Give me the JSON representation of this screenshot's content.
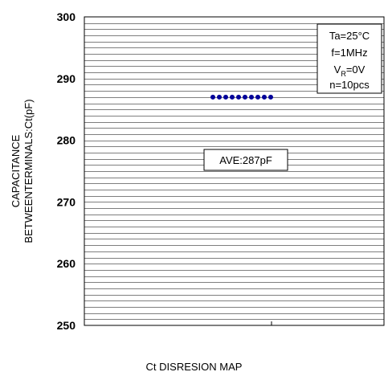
{
  "chart_data": {
    "type": "scatter",
    "title": "",
    "xlabel": "Ct DISRESION MAP",
    "ylabel_lines": [
      "CAPACITANCE",
      "BETWEENTERMINALS:Ct(pF)"
    ],
    "ylim": [
      250,
      300
    ],
    "yticks": [
      250,
      260,
      270,
      280,
      290,
      300
    ],
    "grid": true,
    "series": [
      {
        "values": [
          287,
          287,
          287,
          287,
          287,
          287,
          287,
          287,
          287,
          287
        ],
        "color": "#000099"
      }
    ],
    "annotation": "AVE:287pF",
    "conditions": {
      "ta": "Ta=25°C",
      "f": "f=1MHz",
      "vr_main": "V",
      "vr_sub": "R",
      "vr_value": "=0V",
      "n": "n=10pcs"
    }
  }
}
